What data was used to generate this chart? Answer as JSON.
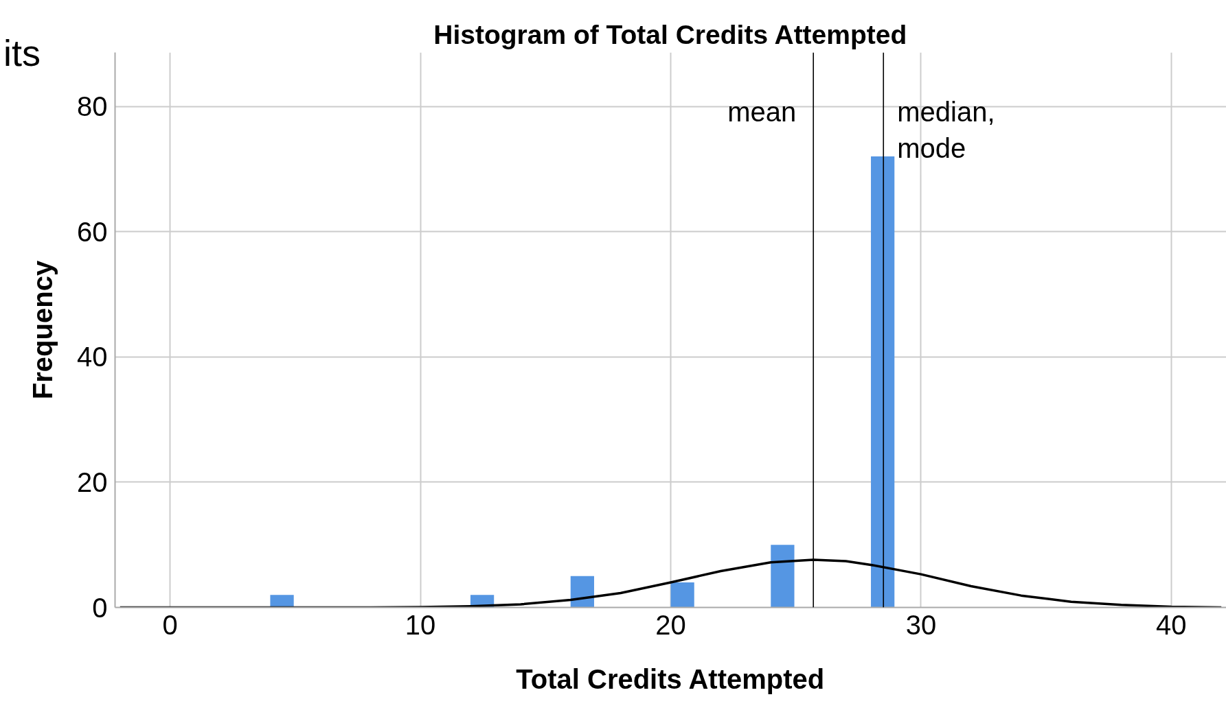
{
  "chart_data": {
    "type": "histogram",
    "title": "Histogram of Total Credits Attempted",
    "xlabel": "Total Credits Attempted",
    "ylabel": "Frequency",
    "bins": [
      4,
      5,
      6,
      7,
      8,
      9,
      10,
      11,
      12,
      13,
      14,
      15,
      16,
      17,
      18,
      19,
      20,
      21,
      22,
      23,
      24,
      25,
      26,
      27,
      28,
      29
    ],
    "values": [
      2,
      0,
      0,
      0,
      0,
      0,
      0,
      0,
      2,
      0,
      0,
      0,
      5,
      0,
      0,
      0,
      4,
      0,
      0,
      0,
      10,
      0,
      0,
      0,
      72
    ],
    "color": "#5596e3",
    "series": [
      {
        "type": "line",
        "color": "#000000",
        "x": [
          -2,
          0,
          4,
          8,
          10,
          12,
          14,
          16,
          18,
          20,
          22,
          24,
          25.7,
          27,
          28,
          30,
          32,
          34,
          36,
          38,
          40,
          42
        ],
        "values": [
          0,
          0,
          0,
          0,
          0.05,
          0.2,
          0.5,
          1.2,
          2.3,
          4.0,
          5.8,
          7.2,
          7.6,
          7.4,
          6.8,
          5.3,
          3.4,
          1.9,
          0.9,
          0.4,
          0.1,
          0
        ]
      }
    ],
    "xlim": [
      -2.2,
      42.2
    ],
    "ylim": [
      0,
      88.6
    ],
    "xticks": [
      0,
      10,
      20,
      30,
      40
    ],
    "yticks": [
      0,
      20,
      40,
      60,
      80
    ],
    "grid": true,
    "ref_lines": [
      {
        "axis": "x",
        "value": 25.7,
        "label": "mean",
        "color": "#000000"
      },
      {
        "axis": "x",
        "value": 28.5,
        "label": "median,\nmode",
        "color": "#000000"
      }
    ],
    "annotations": [
      "its"
    ]
  }
}
